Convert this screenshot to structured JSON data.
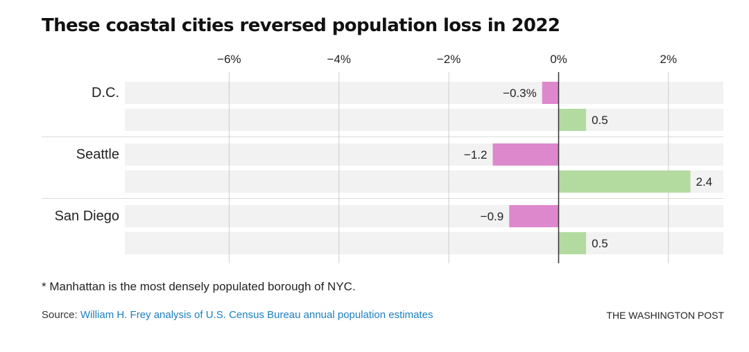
{
  "title": "These coastal cities reversed population loss in 2022",
  "footnote": "* Manhattan is the most densely populated borough of NYC.",
  "source": {
    "label": "Source:",
    "text": "William H. Frey analysis of U.S. Census Bureau annual population estimates"
  },
  "credit": "THE WASHINGTON POST",
  "colors": {
    "negative": "#dd88cc",
    "positive": "#b3dba0",
    "row_background": "#f2f2f2",
    "gridline": "#cccccc",
    "zero_line": "#333333",
    "source_link": "#1a7fc1"
  },
  "chart_data": {
    "type": "bar",
    "orientation": "horizontal",
    "categories": [
      "D.C.",
      "Seattle",
      "San Diego"
    ],
    "bars_per_category": 2,
    "values": [
      [
        -0.3,
        0.5
      ],
      [
        -1.2,
        2.4
      ],
      [
        -0.9,
        0.5
      ]
    ],
    "value_labels": [
      [
        "−0.3%",
        "0.5"
      ],
      [
        "−1.2",
        "2.4"
      ],
      [
        "−0.9",
        "0.5"
      ]
    ],
    "x_ticks": [
      -6,
      -4,
      -2,
      0,
      2
    ],
    "x_tick_labels": [
      "−6%",
      "−4%",
      "−2%",
      "0%",
      "2%"
    ],
    "xlim": [
      -7.9,
      3.0
    ],
    "grid": true
  }
}
